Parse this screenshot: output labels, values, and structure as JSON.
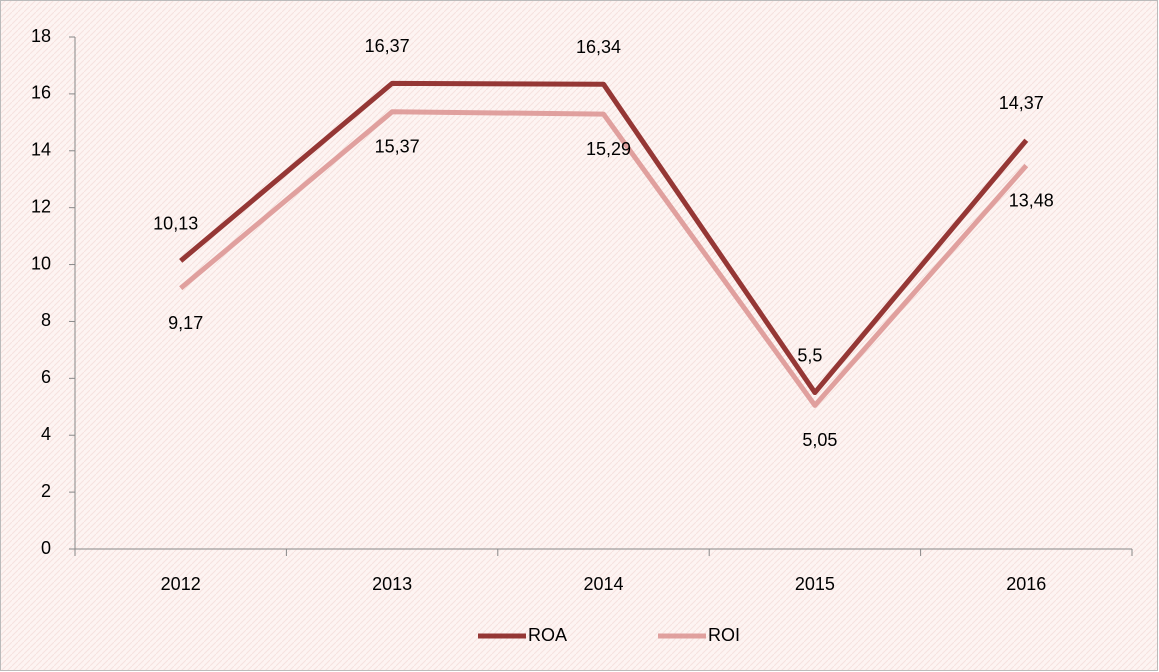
{
  "chart_data": {
    "type": "line",
    "categories": [
      "2012",
      "2013",
      "2014",
      "2015",
      "2016"
    ],
    "series": [
      {
        "name": "ROA",
        "color": "#953735",
        "values": [
          10.13,
          16.37,
          16.34,
          5.5,
          14.37
        ],
        "value_labels": [
          "10,13",
          "16,37",
          "16,34",
          "5,5",
          "14,37"
        ]
      },
      {
        "name": "ROI",
        "color": "#e0a09e",
        "values": [
          9.17,
          15.37,
          15.29,
          5.05,
          13.48
        ],
        "value_labels": [
          "9,17",
          "15,37",
          "15,29",
          "5,05",
          "13,48"
        ]
      }
    ],
    "ylim": [
      0,
      18
    ],
    "yticks": [
      0,
      2,
      4,
      6,
      8,
      10,
      12,
      14,
      16,
      18
    ],
    "grid": false,
    "legend": "bottom"
  }
}
